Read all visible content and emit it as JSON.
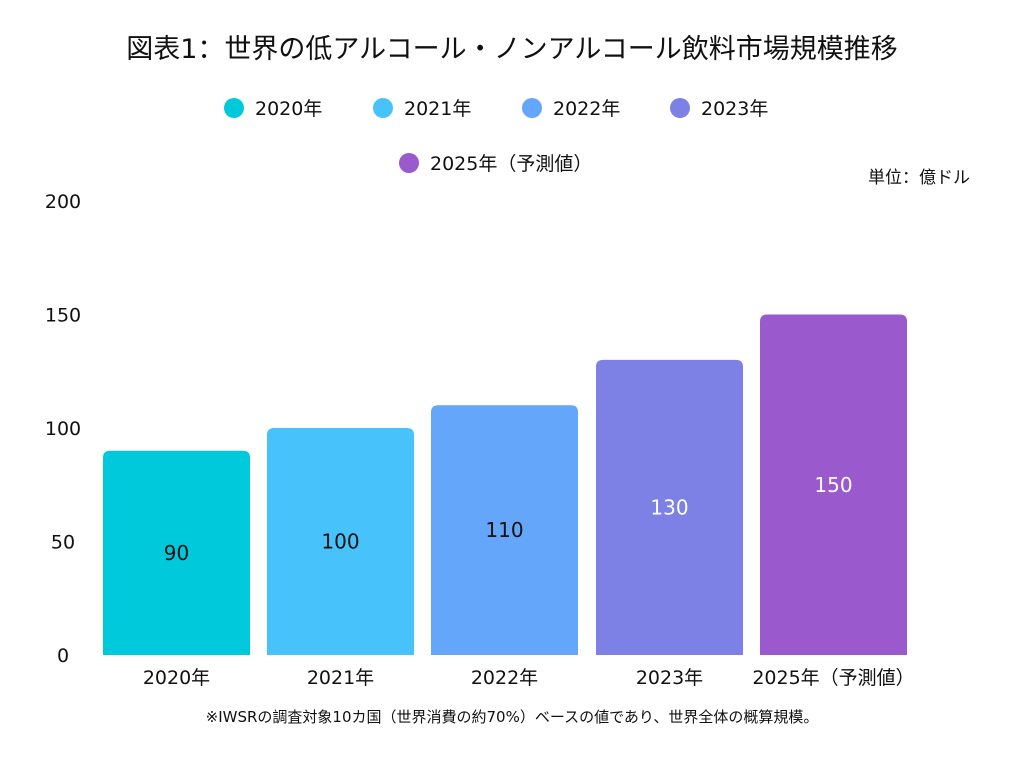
{
  "chart_data": {
    "type": "bar",
    "title": "図表1：世界の低アルコール・ノンアルコール飲料市場規模推移",
    "unit_label": "単位：億ドル",
    "categories": [
      "2020年",
      "2021年",
      "2022年",
      "2023年",
      "2025年（予測値）"
    ],
    "values": [
      90,
      100,
      110,
      130,
      150
    ],
    "colors": [
      "#00c9dc",
      "#47c2fb",
      "#64a6f9",
      "#7d80e5",
      "#9a59cc"
    ],
    "value_label_colors": [
      "#111111",
      "#111111",
      "#111111",
      "#ffffff",
      "#ffffff"
    ],
    "legend": [
      "2020年",
      "2021年",
      "2022年",
      "2023年",
      "2025年（予測値）"
    ],
    "legend_position": "top",
    "ylim": [
      0,
      200
    ],
    "yticks": [
      0,
      50,
      100,
      150,
      200
    ],
    "grid": false,
    "xlabel": "",
    "ylabel": ""
  },
  "note": "※IWSRの調査対象10カ国（世界消費の約70%）ベースの値であり、世界全体の概算規模。"
}
